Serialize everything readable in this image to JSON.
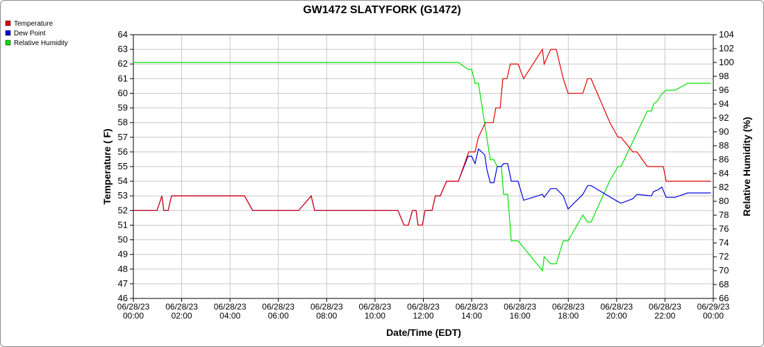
{
  "chart_data": {
    "type": "line",
    "title": "GW1472 SLATYFORK (G1472)",
    "xlabel": "Date/Time (EDT)",
    "ylabel": "Temperature ( F)",
    "y2label": "Relative Humidity (%)",
    "xlim": [
      0,
      24
    ],
    "xticks": [
      {
        "value": 0,
        "label": "06/28/23 00:00"
      },
      {
        "value": 2,
        "label": "06/28/23 02:00"
      },
      {
        "value": 4,
        "label": "06/28/23 04:00"
      },
      {
        "value": 6,
        "label": "06/28/23 06:00"
      },
      {
        "value": 8,
        "label": "06/28/23 08:00"
      },
      {
        "value": 10,
        "label": "06/28/23 10:00"
      },
      {
        "value": 12,
        "label": "06/28/23 12:00"
      },
      {
        "value": 14,
        "label": "06/28/23 14:00"
      },
      {
        "value": 16,
        "label": "06/28/23 16:00"
      },
      {
        "value": 18,
        "label": "06/28/23 18:00"
      },
      {
        "value": 20,
        "label": "06/28/23 20:00"
      },
      {
        "value": 22,
        "label": "06/28/23 22:00"
      },
      {
        "value": 24,
        "label": "06/29/23 00:00"
      }
    ],
    "ylim": [
      46,
      64
    ],
    "yticks": [
      46,
      47,
      48,
      49,
      50,
      51,
      52,
      53,
      54,
      55,
      56,
      57,
      58,
      59,
      60,
      61,
      62,
      63,
      64
    ],
    "y2lim": [
      66,
      104
    ],
    "y2ticks": [
      66,
      68,
      70,
      72,
      74,
      76,
      78,
      80,
      82,
      84,
      86,
      88,
      90,
      92,
      94,
      96,
      98,
      100,
      102,
      104
    ],
    "grid": true,
    "legend": "top-left",
    "series": [
      {
        "name": "Temperature",
        "color": "#e00000",
        "x": [
          0,
          0.98,
          1.18,
          1.26,
          1.44,
          1.58,
          4.6,
          4.94,
          6.84,
          7.36,
          7.5,
          10.95,
          11.2,
          11.38,
          11.55,
          11.7,
          11.78,
          11.96,
          12.07,
          12.36,
          12.5,
          12.7,
          12.96,
          13.45,
          13.88,
          14.14,
          14.28,
          14.57,
          14.89,
          15.0,
          15.18,
          15.29,
          15.46,
          15.6,
          15.92,
          16.15,
          16.93,
          17.0,
          17.27,
          17.5,
          17.79,
          17.99,
          18.6,
          18.8,
          18.94,
          19.72,
          20.06,
          20.18,
          20.67,
          20.84,
          21.27,
          21.93,
          22.05,
          23.9
        ],
        "values": [
          52,
          52,
          53,
          52,
          52,
          53,
          53,
          52,
          52,
          53,
          52,
          52,
          51,
          51,
          52,
          52,
          51,
          51,
          52,
          52,
          53,
          53,
          54,
          54,
          56,
          56,
          57,
          58,
          58,
          59,
          59,
          61,
          61,
          62,
          62,
          61,
          63,
          62,
          63,
          63,
          61,
          60,
          60,
          61,
          61,
          58,
          57,
          57,
          56,
          56,
          55,
          55,
          54,
          54
        ]
      },
      {
        "name": "Dew Point",
        "color": "#0000e0",
        "x": [
          0,
          0.98,
          1.18,
          1.26,
          1.44,
          1.58,
          4.6,
          4.94,
          6.84,
          7.36,
          7.5,
          10.95,
          11.2,
          11.38,
          11.55,
          11.7,
          11.78,
          11.96,
          12.07,
          12.36,
          12.5,
          12.7,
          12.96,
          13.45,
          13.85,
          14.0,
          14.14,
          14.28,
          14.54,
          14.63,
          14.77,
          14.92,
          15.06,
          15.23,
          15.32,
          15.49,
          15.64,
          15.92,
          16.15,
          16.93,
          17.0,
          17.27,
          17.5,
          17.79,
          17.99,
          18.6,
          18.8,
          18.94,
          20.06,
          20.18,
          20.67,
          20.84,
          21.44,
          21.53,
          21.7,
          21.87,
          22.05,
          22.42,
          22.94,
          23.9
        ],
        "values": [
          52,
          52,
          53,
          52,
          52,
          53,
          53,
          52,
          52,
          53,
          52,
          52,
          51,
          51,
          52,
          52,
          51,
          51,
          52,
          52,
          53,
          53,
          54,
          54,
          55.7,
          55.7,
          55.2,
          56.2,
          55.8,
          54.8,
          53.9,
          53.9,
          55,
          55,
          55.2,
          55.2,
          54,
          54,
          52.7,
          53.1,
          52.9,
          53.5,
          53.5,
          53,
          52.1,
          53.1,
          53.7,
          53.7,
          52.6,
          52.5,
          52.8,
          53.1,
          53,
          53.3,
          53.4,
          53.6,
          52.9,
          52.9,
          53.2,
          53.2
        ]
      },
      {
        "name": "Relative Humidity",
        "color": "#00e000",
        "axis": "y2",
        "x": [
          0,
          13.45,
          13.85,
          14.0,
          14.14,
          14.28,
          14.77,
          14.92,
          15.06,
          15.23,
          15.32,
          15.49,
          15.64,
          15.92,
          16.93,
          17.0,
          17.27,
          17.5,
          17.79,
          17.99,
          18.6,
          18.8,
          18.94,
          19.72,
          20.06,
          20.18,
          21.27,
          21.44,
          21.53,
          21.7,
          21.87,
          22.05,
          22.42,
          22.94,
          23.9
        ],
        "values": [
          100,
          100,
          99,
          99,
          97,
          97,
          86,
          86,
          85,
          85,
          81,
          81,
          74.3,
          74.3,
          70,
          72,
          71,
          71,
          74.3,
          74.3,
          78,
          77,
          77,
          83,
          85,
          85,
          93,
          93,
          94,
          94.5,
          95.5,
          96,
          96,
          97,
          97
        ]
      }
    ]
  }
}
